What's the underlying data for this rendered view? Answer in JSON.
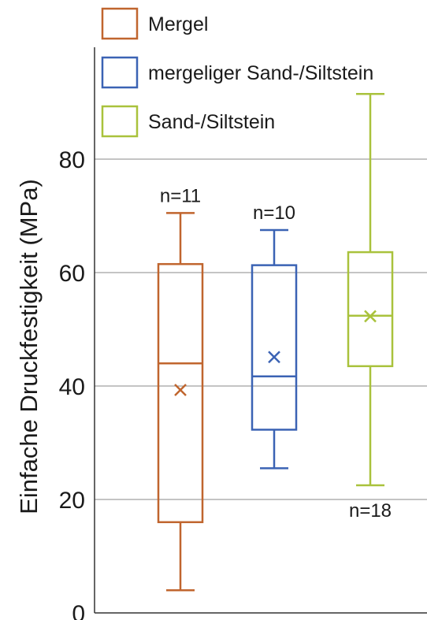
{
  "chart_data": {
    "type": "box",
    "title": "",
    "xlabel": "",
    "ylabel": "Einfache Druckfestigkeit (MPa)",
    "ylim": [
      0,
      100
    ],
    "yticks": [
      0,
      20,
      40,
      60,
      80
    ],
    "grid": true,
    "legend_position": "top-left",
    "series": [
      {
        "name": "Mergel",
        "color": "#c0652e",
        "min": 4,
        "q1": 16,
        "median": 44,
        "q3": 61.5,
        "max": 70.5,
        "mean": 39.3,
        "n_label": "n=11",
        "n_label_position": "above"
      },
      {
        "name": "mergeliger Sand-/Siltstein",
        "color": "#3b63b4",
        "min": 25.5,
        "q1": 32.3,
        "median": 41.7,
        "q3": 61.3,
        "max": 67.5,
        "mean": 45.1,
        "n_label": "n=10",
        "n_label_position": "above"
      },
      {
        "name": "Sand-/Siltstein",
        "color": "#a9c23c",
        "min": 22.5,
        "q1": 43.5,
        "median": 52.4,
        "q3": 63.6,
        "max": 91.5,
        "mean": 52.3,
        "n_label": "n=18",
        "n_label_position": "below"
      }
    ]
  }
}
